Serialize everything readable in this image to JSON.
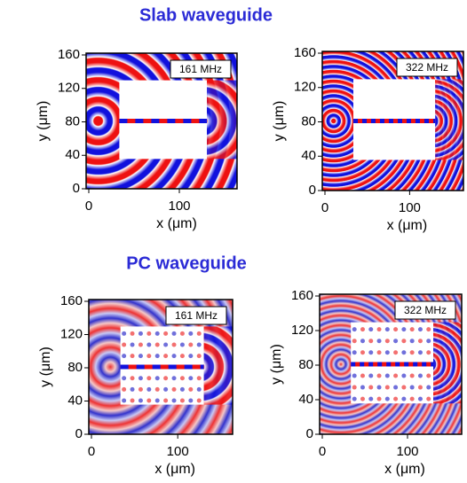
{
  "sections": [
    {
      "title": "Slab waveguide",
      "panels": [
        {
          "frequency": "161 MHz",
          "y_label": "y (μm)",
          "x_label": "x (μm)",
          "yticks": [
            "0",
            "40",
            "80",
            "120",
            "160"
          ],
          "xticks": [
            "0",
            "100"
          ]
        },
        {
          "frequency": "322 MHz",
          "y_label": "y (μm)",
          "x_label": "x (μm)",
          "yticks": [
            "0",
            "40",
            "80",
            "120",
            "160"
          ],
          "xticks": [
            "0",
            "100"
          ]
        }
      ]
    },
    {
      "title": "PC waveguide",
      "panels": [
        {
          "frequency": "161 MHz",
          "y_label": "y (μm)",
          "x_label": "x (μm)",
          "yticks": [
            "0",
            "40",
            "80",
            "120",
            "160"
          ],
          "xticks": [
            "0",
            "100"
          ]
        },
        {
          "frequency": "322 MHz",
          "y_label": "y (μm)",
          "x_label": "x (μm)",
          "yticks": [
            "0",
            "40",
            "80",
            "120",
            "160"
          ],
          "xticks": [
            "0",
            "100"
          ]
        }
      ]
    }
  ]
}
